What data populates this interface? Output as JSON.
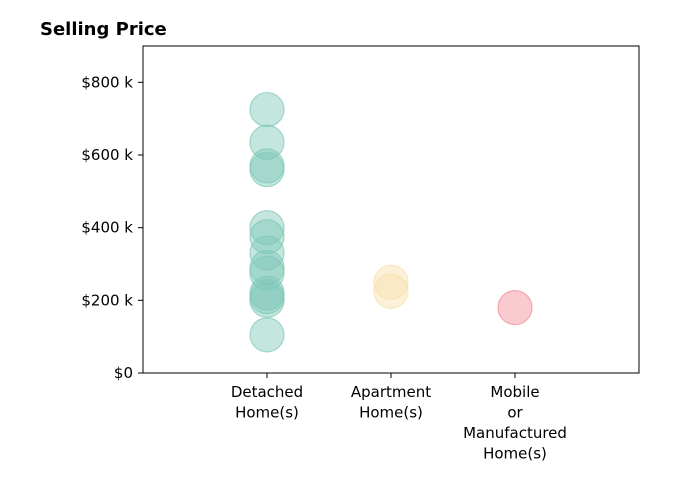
{
  "chart_data": {
    "type": "scatter",
    "title": "Selling Price",
    "xlabel": "",
    "ylabel": "",
    "categories": [
      "Detached\nHome(s)",
      "Apartment\nHome(s)",
      "Mobile\nor\nManufactured\nHome(s)"
    ],
    "ylim": [
      0,
      900000
    ],
    "yticks": [
      0,
      200000,
      400000,
      600000,
      800000
    ],
    "ytick_labels": [
      "$0",
      "$200 k",
      "$400 k",
      "$600 k",
      "$800 k"
    ],
    "grid": false,
    "legend": "none",
    "series": [
      {
        "category": "Detached\nHome(s)",
        "color": "#7ec8b9",
        "values": [
          725000,
          635000,
          570000,
          560000,
          400000,
          375000,
          330000,
          290000,
          275000,
          220000,
          210000,
          200000,
          105000
        ]
      },
      {
        "category": "Apartment\nHome(s)",
        "color": "#f6dfaa",
        "values": [
          250000,
          225000
        ]
      },
      {
        "category": "Mobile\nor\nManufactured\nHome(s)",
        "color": "#f28b96",
        "values": [
          180000
        ]
      }
    ]
  }
}
